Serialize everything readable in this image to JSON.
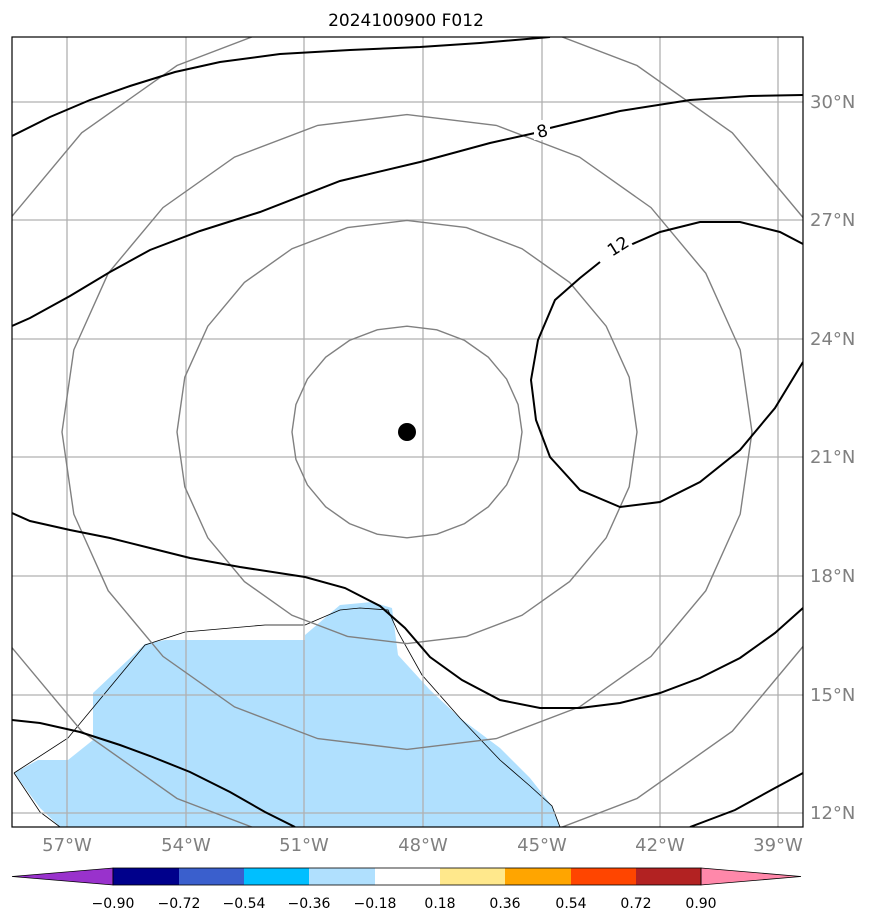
{
  "title": "2024100900 F012",
  "map": {
    "lat_labels": [
      "30°N",
      "27°N",
      "24°N",
      "21°N",
      "18°N",
      "15°N",
      "12°N"
    ],
    "lon_labels": [
      "57°W",
      "54°W",
      "51°W",
      "48°W",
      "45°W",
      "42°W",
      "39°W"
    ],
    "contour_labels": [
      "8",
      "12"
    ],
    "storm_center": {
      "lat": 21.7,
      "lon": -48.4
    },
    "shaded_region_color": "#b0e0fe",
    "range_ring_color": "#808080",
    "contour_color": "#000000"
  },
  "colorbar": {
    "ticks": [
      "−0.90",
      "−0.72",
      "−0.54",
      "−0.36",
      "−0.18",
      "0.18",
      "0.36",
      "0.54",
      "0.72",
      "0.90"
    ],
    "colors": [
      "#9932cc",
      "#00008b",
      "#3a5fcd",
      "#00bfff",
      "#b0e0fe",
      "#ffffff",
      "#ffe88c",
      "#ffa500",
      "#ff4500",
      "#b22222",
      "#ff88aa"
    ]
  }
}
